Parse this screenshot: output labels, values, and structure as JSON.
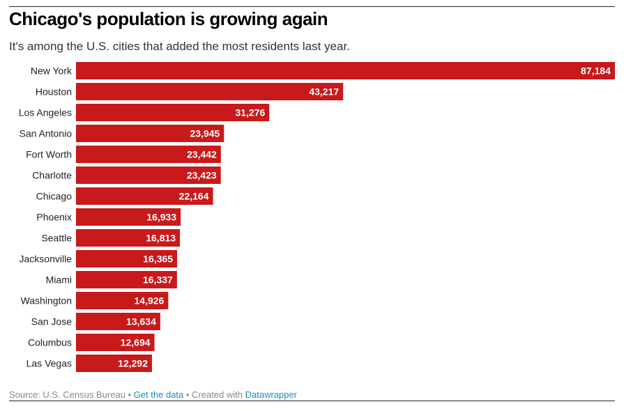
{
  "header": {
    "title": "Chicago's population is growing again",
    "subtitle": "It's among the U.S. cities that added the most residents last year."
  },
  "chart_data": {
    "type": "bar",
    "orientation": "horizontal",
    "categories": [
      "New York",
      "Houston",
      "Los Angeles",
      "San Antonio",
      "Fort Worth",
      "Charlotte",
      "Chicago",
      "Phoenix",
      "Seattle",
      "Jacksonville",
      "Miami",
      "Washington",
      "San Jose",
      "Columbus",
      "Las Vegas"
    ],
    "values": [
      87184,
      43217,
      31276,
      23945,
      23442,
      23423,
      22164,
      16933,
      16813,
      16365,
      16337,
      14926,
      13634,
      12694,
      12292
    ],
    "value_labels": [
      "87,184",
      "43,217",
      "31,276",
      "23,945",
      "23,442",
      "23,423",
      "22,164",
      "16,933",
      "16,813",
      "16,365",
      "16,337",
      "14,926",
      "13,634",
      "12,694",
      "12,292"
    ],
    "title": "Chicago's population is growing again",
    "xlabel": "",
    "ylabel": "",
    "xlim": [
      0,
      87184
    ],
    "grid": false,
    "legend": "none",
    "bar_color": "#c8191b",
    "label_color": "#ffffff"
  },
  "footer": {
    "source": "Source: U.S. Census Bureau",
    "separator1": " • ",
    "get_data": "Get the data",
    "separator2": " • Created with ",
    "tool": "Datawrapper"
  }
}
